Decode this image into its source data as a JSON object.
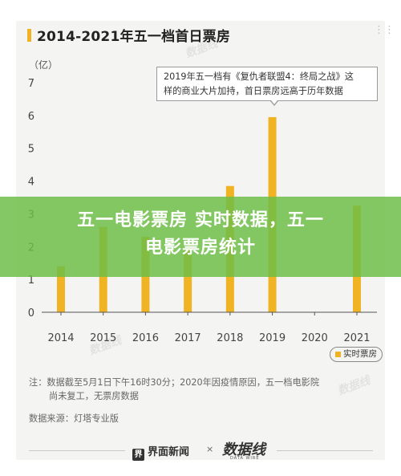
{
  "title": "2014-2021年五一档首日票房",
  "unit_label": "（亿）",
  "callout": {
    "line1": "2019年五一档有《复仇者联盟4：终局之战》这",
    "line2": "样的商业大片加持，首日票房远高于历年数据"
  },
  "legend": "实时票房",
  "note_line1": "注：数据截至5月1日下午16时30分；2020年因疫情原因，五一档电影院",
  "note_line2": "尚未复工，无票房数据",
  "source": "数据来源：灯塔专业版",
  "banner_line1": "五一电影票房 实时数据，五一",
  "banner_line2": "电影票房统计",
  "footer": {
    "logo1_box": "界",
    "logo1_text": "界面新闻",
    "separator": "×",
    "logo2_text": "数据线",
    "logo2_sub": "DATA WIRE"
  },
  "corner_icon": "dots-icon",
  "colors": {
    "bar": "#f0b323",
    "banner": "#6cbe48"
  },
  "chart_data": {
    "type": "bar",
    "categories": [
      "2014",
      "2015",
      "2016",
      "2017",
      "2018",
      "2019",
      "2020",
      "2021"
    ],
    "series": [
      {
        "name": "实时票房",
        "values": [
          1.4,
          2.6,
          2.3,
          1.9,
          3.85,
          5.95,
          0,
          3.25
        ]
      }
    ],
    "ylim": [
      0,
      7
    ],
    "yticks": [
      "0",
      "1",
      "2",
      "3",
      "4",
      "5",
      "6",
      "7"
    ],
    "grid": false,
    "legend_position": "bottom-right"
  }
}
